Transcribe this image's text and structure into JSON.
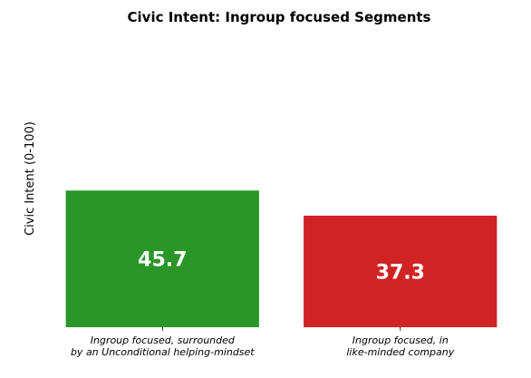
{
  "chart_data": {
    "type": "bar",
    "title": "Civic Intent: Ingroup focused Segments",
    "xlabel": "",
    "ylabel": "Civic Intent (0-100)",
    "categories": [
      [
        "Ingroup focused, surrounded",
        "by an Unconditional helping-mindset"
      ],
      [
        "Ingroup focused, in",
        "like-minded company"
      ]
    ],
    "values": [
      45.7,
      37.3
    ],
    "value_labels": [
      "45.7",
      "37.3"
    ],
    "colors": [
      "#2a9628",
      "#d12323"
    ],
    "ylim": [
      0,
      100
    ],
    "grid": false,
    "legend": "none",
    "y_ticks_visible": false
  }
}
